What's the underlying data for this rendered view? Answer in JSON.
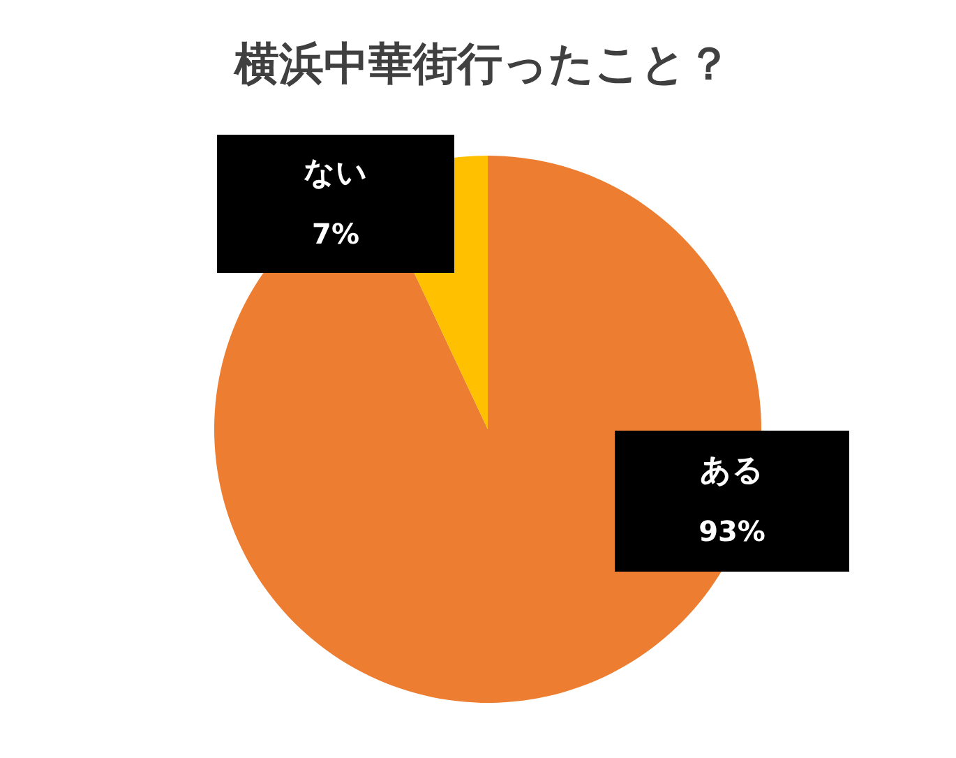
{
  "chart_data": {
    "type": "pie",
    "title": "横浜中華街行ったこと？",
    "categories": [
      "ある",
      "ない"
    ],
    "values": [
      93,
      7
    ],
    "colors": [
      "#ed7d31",
      "#ffc000"
    ],
    "value_labels": [
      "93%",
      "7%"
    ]
  }
}
